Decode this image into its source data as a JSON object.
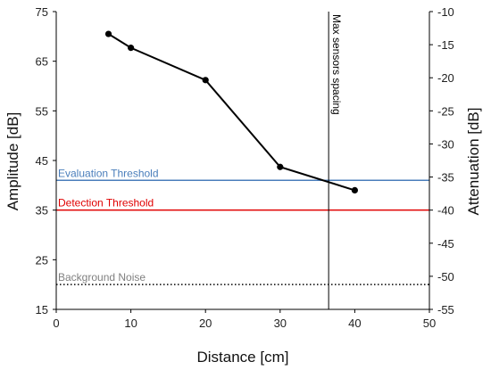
{
  "chart_data": {
    "type": "line",
    "xlabel": "Distance [cm]",
    "ylabel": "Amplitude [dB]",
    "y2label": "Attenuation [dB]",
    "xlim": [
      0,
      50
    ],
    "ylim": [
      15,
      75
    ],
    "y2lim": [
      -55,
      -10
    ],
    "xticks": [
      "0",
      "10",
      "20",
      "30",
      "40",
      "50"
    ],
    "yticks": [
      "15",
      "25",
      "35",
      "45",
      "55",
      "65",
      "75"
    ],
    "y2ticks": [
      "-10",
      "-15",
      "-20",
      "-25",
      "-30",
      "-35",
      "-40",
      "-45",
      "-50",
      "-55"
    ],
    "grid": false,
    "series": [
      {
        "color": "#000000",
        "x": [
          7,
          10,
          20,
          30,
          40
        ],
        "y": [
          70.5,
          67.7,
          61.2,
          43.7,
          39.0
        ]
      }
    ],
    "hlines": [
      {
        "label": "Evaluation Threshold",
        "y": 41,
        "color": "#4a7ebb",
        "style": "solid"
      },
      {
        "label": "Detection Threshold",
        "y": 35,
        "color": "#e00000",
        "style": "solid"
      },
      {
        "label": "Background Noise",
        "y": 20,
        "color": "#000000",
        "label_color": "#808080",
        "style": "dotted"
      }
    ],
    "vline": {
      "label": "Max sensors spacing",
      "x": 36.5,
      "color": "#000000"
    }
  }
}
